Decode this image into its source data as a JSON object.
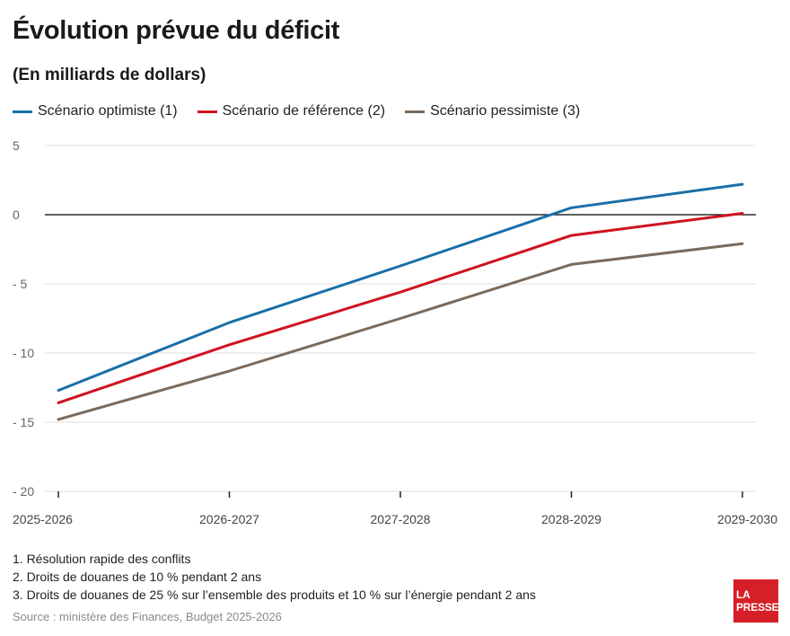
{
  "header": {
    "title": "Évolution prévue du déficit",
    "subtitle": "(En milliards de dollars)"
  },
  "legend": [
    {
      "label": "Scénario optimiste (1)",
      "color": "#1a6fa8"
    },
    {
      "label": "Scénario de référence (2)",
      "color": "#d0121f"
    },
    {
      "label": "Scénario pessimiste (3)",
      "color": "#7a6a5c"
    }
  ],
  "chart_data": {
    "type": "line",
    "title": "Évolution prévue du déficit",
    "subtitle": "(En milliards de dollars)",
    "xlabel": "",
    "ylabel": "",
    "categories": [
      "2025-2026",
      "2026-2027",
      "2027-2028",
      "2028-2029",
      "2029-2030"
    ],
    "y_ticks": [
      "5",
      "0",
      "- 5",
      "- 10",
      "- 15",
      "- 20"
    ],
    "y_tick_values": [
      5,
      0,
      -5,
      -10,
      -15,
      -20
    ],
    "ylim": [
      -20,
      5
    ],
    "grid": true,
    "legend_position": "top-left",
    "series": [
      {
        "name": "Scénario optimiste (1)",
        "color": "#1a6fa8",
        "values": [
          -12.7,
          -7.8,
          -3.7,
          0.5,
          2.2
        ]
      },
      {
        "name": "Scénario de référence (2)",
        "color": "#d0121f",
        "values": [
          -13.6,
          -9.4,
          -5.6,
          -1.5,
          0.1
        ]
      },
      {
        "name": "Scénario pessimiste (3)",
        "color": "#7a6a5c",
        "values": [
          -14.8,
          -11.3,
          -7.5,
          -3.6,
          -2.1
        ]
      }
    ]
  },
  "notes": [
    "1. Résolution rapide des conflits",
    "2. Droits de douanes de 10 % pendant 2 ans",
    "3. Droits de douanes de 25 % sur l’ensemble des produits et 10 % sur l’énergie pendant 2 ans"
  ],
  "source": "Source : ministère des Finances, Budget 2025-2026",
  "logo": {
    "line1": "LA",
    "line2": "PRESSE",
    "color": "#d62027"
  }
}
